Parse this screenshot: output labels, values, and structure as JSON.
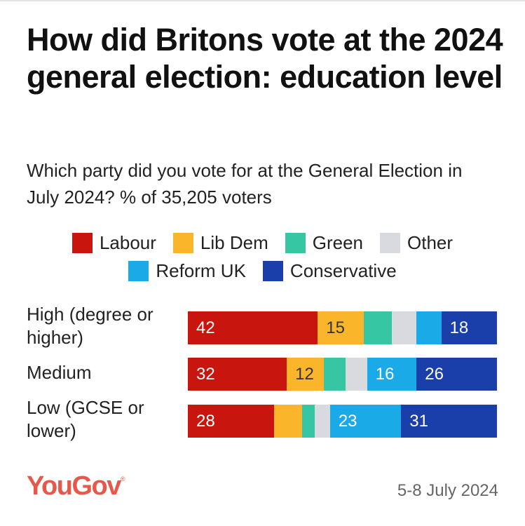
{
  "chart_data": {
    "type": "bar",
    "orientation": "horizontal",
    "stacked": true,
    "title": "How did Britons vote at the 2024 general election: education level",
    "subtitle": "Which party did you vote for at the General Election in July 2024? % of 35,205 voters",
    "categories": [
      "High (degree or higher)",
      "Medium",
      "Low (GCSE or lower)"
    ],
    "xlim": [
      0,
      100
    ],
    "legend_position": "top",
    "series": [
      {
        "name": "Labour",
        "color": "#c8160f",
        "values": [
          42,
          32,
          28
        ],
        "labels": [
          "42",
          "32",
          "28"
        ]
      },
      {
        "name": "Lib Dem",
        "color": "#fbb52b",
        "values": [
          15,
          12,
          9
        ],
        "labels": [
          "15",
          "12",
          ""
        ]
      },
      {
        "name": "Green",
        "color": "#37c6a3",
        "values": [
          9,
          7,
          4
        ],
        "labels": [
          "",
          "",
          ""
        ]
      },
      {
        "name": "Other",
        "color": "#d9dadf",
        "values": [
          8,
          7,
          5
        ],
        "labels": [
          "",
          "",
          ""
        ]
      },
      {
        "name": "Reform UK",
        "color": "#1aaae8",
        "values": [
          8,
          16,
          23
        ],
        "labels": [
          "",
          "16",
          "23"
        ]
      },
      {
        "name": "Conservative",
        "color": "#1a3faa",
        "values": [
          18,
          26,
          31
        ],
        "labels": [
          "18",
          "26",
          "31"
        ]
      }
    ],
    "label_colors": {
      "Labour": "#ffffff",
      "Lib Dem": "#333333",
      "Green": "#333333",
      "Other": "#333333",
      "Reform UK": "#ffffff",
      "Conservative": "#ffffff"
    }
  },
  "legend": {
    "rows": [
      [
        "Labour",
        "Lib Dem",
        "Green",
        "Other"
      ],
      [
        "Reform UK",
        "Conservative"
      ]
    ]
  },
  "footer": {
    "brand": "YouGov",
    "brand_mark": "®",
    "date": "5-8 July 2024"
  }
}
